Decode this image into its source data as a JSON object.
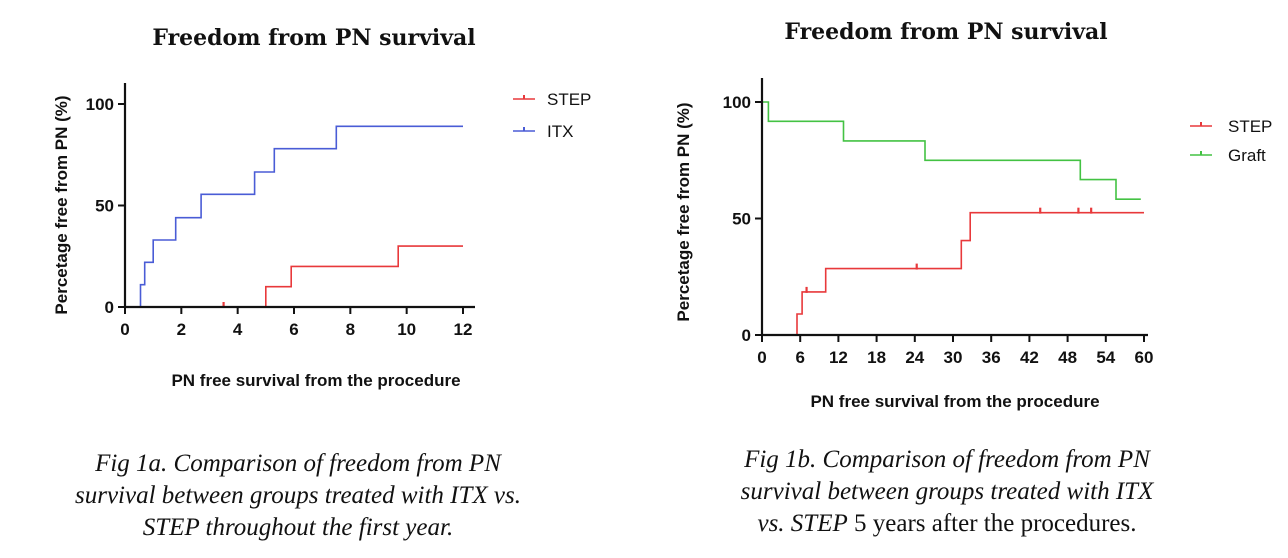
{
  "chart_data": [
    {
      "type": "line",
      "step": true,
      "title": "Freedom from PN survival",
      "xlabel": "PN free survival from the procedure",
      "ylabel": "Percetage free from PN (%)",
      "xlim": [
        0,
        12
      ],
      "ylim": [
        0,
        100
      ],
      "xticks": [
        0,
        2,
        4,
        6,
        8,
        10,
        12
      ],
      "yticks": [
        0,
        50,
        100
      ],
      "series": [
        {
          "name": "STEP",
          "color": "#e8393b",
          "x": [
            0,
            5.0,
            5.0,
            5.9,
            5.9,
            9.7,
            9.7,
            12
          ],
          "y": [
            0,
            0,
            10,
            10,
            20,
            20,
            30,
            30
          ],
          "censored": [
            {
              "x": 3.5,
              "y": 0
            }
          ]
        },
        {
          "name": "ITX",
          "color": "#4a5cd6",
          "x": [
            0.45,
            0.55,
            0.55,
            0.7,
            0.7,
            1.0,
            1.0,
            1.8,
            1.8,
            2.7,
            2.7,
            4.6,
            4.6,
            5.3,
            5.3,
            7.5,
            7.5,
            12
          ],
          "y": [
            0,
            0,
            11,
            11,
            22,
            22,
            33,
            33,
            44,
            44,
            55.5,
            55.5,
            66.5,
            66.5,
            78,
            78,
            89,
            89
          ],
          "censored": []
        }
      ],
      "legend": "top-right"
    },
    {
      "type": "line",
      "step": true,
      "title": "Freedom from PN survival",
      "xlabel": "PN free survival from the procedure",
      "ylabel": "Percetage free from PN (%)",
      "xlim": [
        0,
        60
      ],
      "ylim": [
        0,
        100
      ],
      "xticks": [
        0,
        6,
        12,
        18,
        24,
        30,
        36,
        42,
        48,
        54,
        60
      ],
      "yticks": [
        0,
        50,
        100
      ],
      "series": [
        {
          "name": "STEP",
          "color": "#e8393b",
          "x": [
            5.5,
            5.5,
            6.3,
            6.3,
            10.0,
            10.0,
            31.3,
            31.3,
            32.7,
            32.7,
            60
          ],
          "y": [
            0,
            9,
            9,
            18.5,
            18.5,
            28.5,
            28.5,
            40.5,
            40.5,
            52.5,
            52.5
          ],
          "censored": [
            {
              "x": 7.0,
              "y": 18.5
            },
            {
              "x": 24.3,
              "y": 28.5
            },
            {
              "x": 43.7,
              "y": 52.5
            },
            {
              "x": 49.7,
              "y": 52.5
            },
            {
              "x": 51.7,
              "y": 52.5
            }
          ]
        },
        {
          "name": "Graft",
          "color": "#43c243",
          "x": [
            0,
            1.0,
            1.0,
            12.8,
            12.8,
            25.6,
            25.6,
            50.0,
            50.0,
            55.6,
            55.6,
            59.5
          ],
          "y": [
            100,
            100,
            91.7,
            91.7,
            83.3,
            83.3,
            75,
            75,
            66.7,
            66.7,
            58.3,
            58.3
          ],
          "censored": []
        }
      ],
      "legend": "top-right"
    }
  ],
  "captions": {
    "a": {
      "line1": "Fig 1a. Comparison of freedom from PN",
      "line2": "survival between groups treated with ITX vs.",
      "line3": "STEP throughout the first year."
    },
    "b": {
      "line1": "Fig 1b. Comparison of freedom from PN",
      "line2": "survival between groups treated with ITX",
      "line3_italic": "vs. STEP",
      "line3_rest": " 5 years after the procedures."
    }
  }
}
